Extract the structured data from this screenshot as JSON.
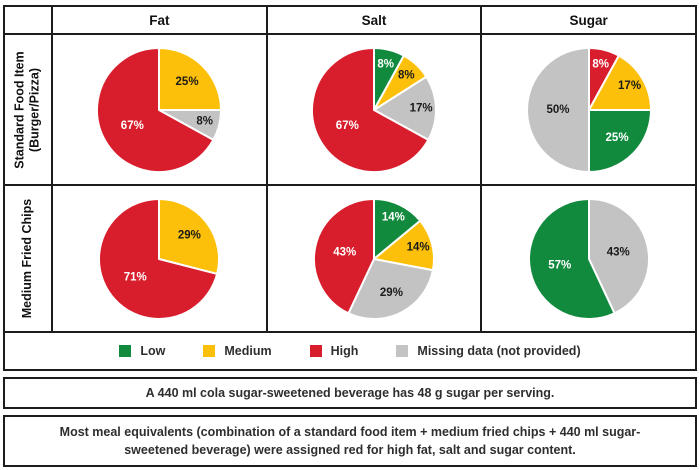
{
  "colors": {
    "low": {
      "fill": "#128A3E",
      "text": "#FFFFFF"
    },
    "medium": {
      "fill": "#FCC00A",
      "text": "#1A1A1A"
    },
    "high": {
      "fill": "#D81E2C",
      "text": "#FFFFFF"
    },
    "missing": {
      "fill": "#C3C3C3",
      "text": "#1A1A1A"
    }
  },
  "table": {
    "columns": [
      "Fat",
      "Salt",
      "Sugar"
    ],
    "row_labels": [
      {
        "line1": "Standard Food Item",
        "line2": "(Burger/Pizza)"
      },
      {
        "line1": "Medium Fried Chips",
        "line2": ""
      }
    ]
  },
  "legend": {
    "items": [
      {
        "key": "low",
        "label": "Low"
      },
      {
        "key": "medium",
        "label": "Medium"
      },
      {
        "key": "high",
        "label": "High"
      },
      {
        "key": "missing",
        "label": "Missing data (not provided)"
      }
    ]
  },
  "notes": [
    "A 440 ml cola sugar-sweetened beverage has 48 g sugar per serving.",
    "Most meal equivalents (combination of a standard food item + medium fried chips + 440 ml sugar-sweetened beverage) were assigned red for high fat, salt and sugar content."
  ],
  "chart_data": [
    {
      "type": "pie",
      "row": "Standard Food Item (Burger/Pizza)",
      "column": "Fat",
      "slices": [
        {
          "level": "medium",
          "category": "Medium",
          "value": 25,
          "label": "25%"
        },
        {
          "level": "missing",
          "category": "Missing data (not provided)",
          "value": 8,
          "label": "8%"
        },
        {
          "level": "high",
          "category": "High",
          "value": 67,
          "label": "67%"
        }
      ]
    },
    {
      "type": "pie",
      "row": "Standard Food Item (Burger/Pizza)",
      "column": "Salt",
      "slices": [
        {
          "level": "low",
          "category": "Low",
          "value": 8,
          "label": "8%"
        },
        {
          "level": "medium",
          "category": "Medium",
          "value": 8,
          "label": "8%"
        },
        {
          "level": "missing",
          "category": "Missing data (not provided)",
          "value": 17,
          "label": "17%"
        },
        {
          "level": "high",
          "category": "High",
          "value": 67,
          "label": "67%"
        }
      ]
    },
    {
      "type": "pie",
      "row": "Standard Food Item (Burger/Pizza)",
      "column": "Sugar",
      "slices": [
        {
          "level": "high",
          "category": "High",
          "value": 8,
          "label": "8%"
        },
        {
          "level": "medium",
          "category": "Medium",
          "value": 17,
          "label": "17%"
        },
        {
          "level": "low",
          "category": "Low",
          "value": 25,
          "label": "25%"
        },
        {
          "level": "missing",
          "category": "Missing data (not provided)",
          "value": 50,
          "label": "50%"
        }
      ]
    },
    {
      "type": "pie",
      "row": "Medium Fried Chips",
      "column": "Fat",
      "slices": [
        {
          "level": "medium",
          "category": "Medium",
          "value": 29,
          "label": "29%"
        },
        {
          "level": "high",
          "category": "High",
          "value": 71,
          "label": "71%"
        }
      ]
    },
    {
      "type": "pie",
      "row": "Medium Fried Chips",
      "column": "Salt",
      "slices": [
        {
          "level": "low",
          "category": "Low",
          "value": 14,
          "label": "14%"
        },
        {
          "level": "medium",
          "category": "Medium",
          "value": 14,
          "label": "14%"
        },
        {
          "level": "missing",
          "category": "Missing data (not provided)",
          "value": 29,
          "label": "29%"
        },
        {
          "level": "high",
          "category": "High",
          "value": 43,
          "label": "43%"
        }
      ]
    },
    {
      "type": "pie",
      "row": "Medium Fried Chips",
      "column": "Sugar",
      "slices": [
        {
          "level": "missing",
          "category": "Missing data (not provided)",
          "value": 43,
          "label": "43%"
        },
        {
          "level": "low",
          "category": "Low",
          "value": 57,
          "label": "57%"
        }
      ]
    }
  ]
}
